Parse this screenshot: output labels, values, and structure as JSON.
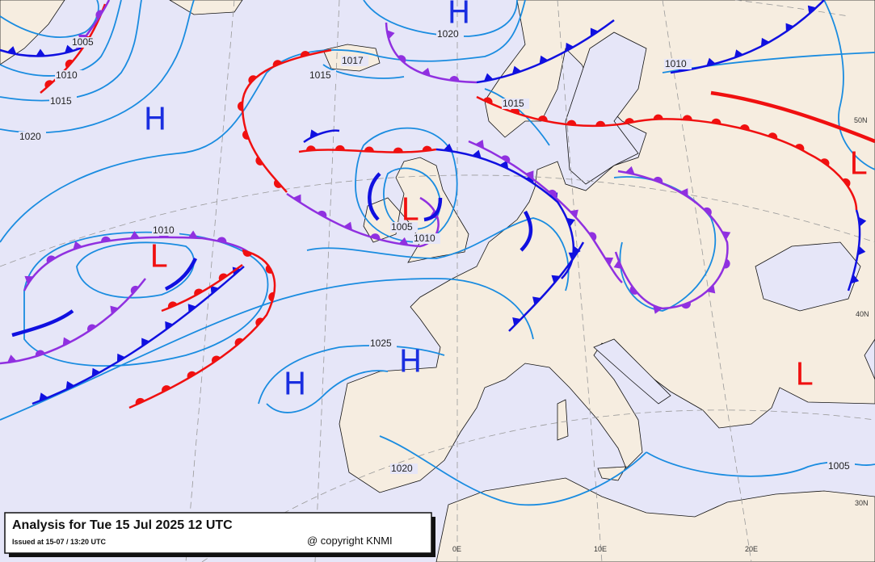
{
  "map": {
    "pressure_centers": [
      {
        "label": "H",
        "color": "#1a2ee0"
      },
      {
        "label": "H",
        "color": "#1a2ee0"
      },
      {
        "label": "L",
        "color": "#f01010"
      },
      {
        "label": "L",
        "color": "#f01010"
      },
      {
        "label": "L",
        "color": "#f01010"
      },
      {
        "label": "H",
        "color": "#1a2ee0"
      },
      {
        "label": "H",
        "color": "#1a2ee0"
      },
      {
        "label": "L",
        "color": "#f01010"
      }
    ],
    "isobar_labels": [
      1005,
      1010,
      1015,
      1020,
      1020,
      1015,
      1017,
      1010,
      1010,
      1005,
      1010,
      1025,
      1020,
      1005,
      1015
    ],
    "graticule_labels": [
      "50N",
      "40N",
      "30N",
      "0E",
      "10E",
      "20E"
    ],
    "title": "Analysis for Tue 15 Jul 2025 12 UTC",
    "issued": "Issued at 15-07 / 13:20 UTC",
    "copyright": "@ copyright KNMI"
  }
}
